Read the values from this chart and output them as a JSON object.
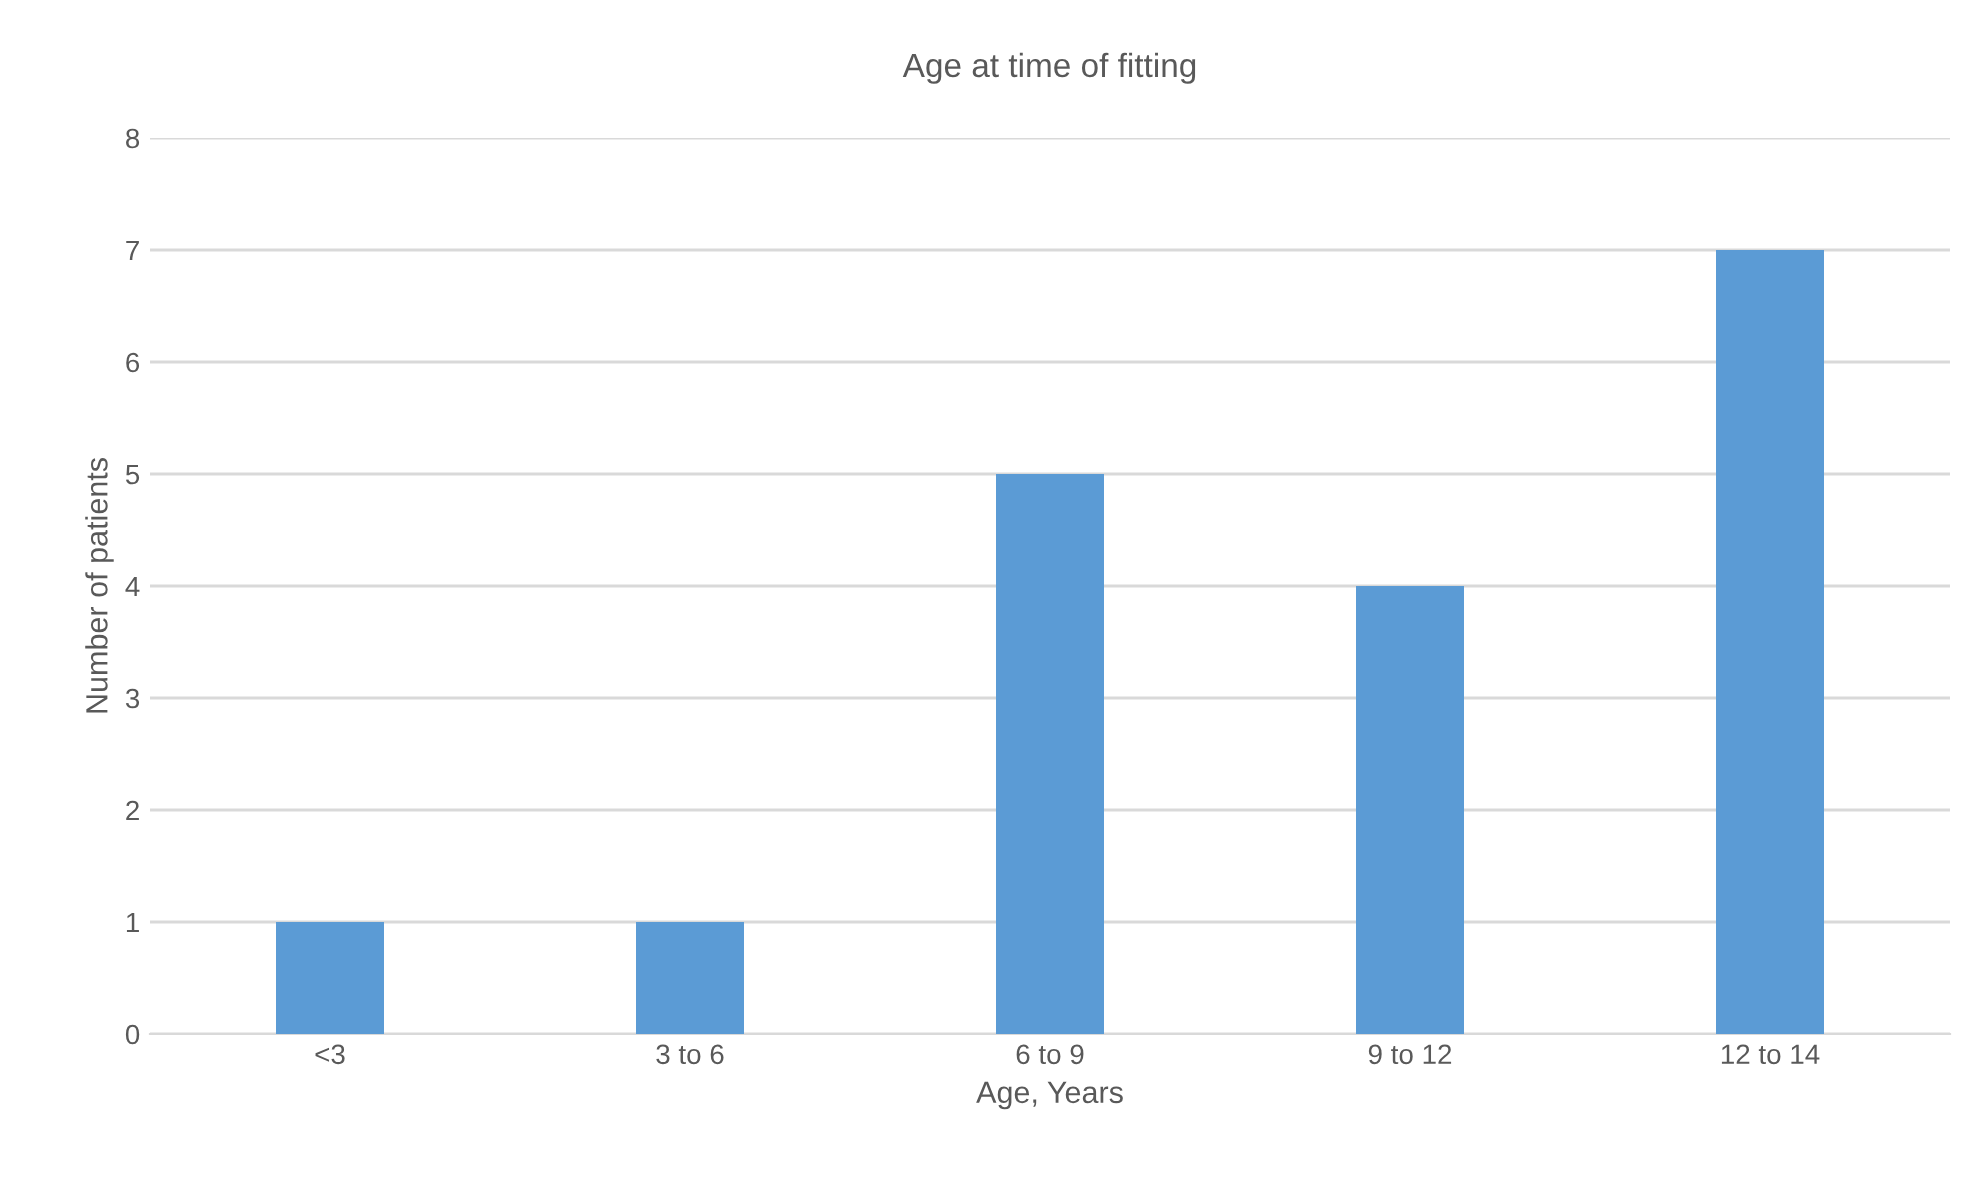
{
  "chart_data": {
    "type": "bar",
    "title": "Age at time of fitting",
    "xlabel": "Age, Years",
    "ylabel": "Number of patients",
    "categories": [
      "<3",
      "3 to 6",
      "6 to 9",
      "9 to 12",
      "12 to 14"
    ],
    "values": [
      1,
      1,
      5,
      4,
      7
    ],
    "color": "#5b9bd5",
    "ylim": [
      0,
      8
    ],
    "yticks": [
      0,
      1,
      2,
      3,
      4,
      5,
      6,
      7,
      8
    ],
    "grid": "y",
    "legend": false
  }
}
